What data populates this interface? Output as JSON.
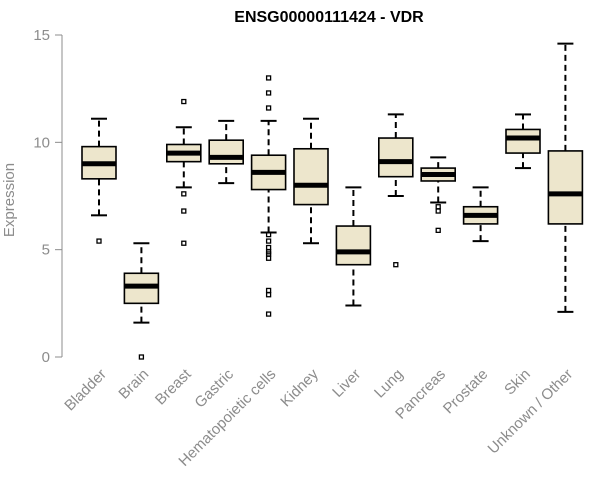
{
  "chart_data": {
    "type": "boxplot",
    "title": "ENSG00000111424 - VDR",
    "xlabel": "",
    "ylabel": "Expression",
    "ylim": [
      0,
      15
    ],
    "yticks": [
      0,
      5,
      10,
      15
    ],
    "categories": [
      "Bladder",
      "Brain",
      "Breast",
      "Gastric",
      "Hematopoietic cells",
      "Kidney",
      "Liver",
      "Lung",
      "Pancreas",
      "Prostate",
      "Skin",
      "Unknown / Other"
    ],
    "boxes": [
      {
        "name": "Bladder",
        "min": 6.6,
        "q1": 8.3,
        "median": 9.0,
        "q3": 9.8,
        "max": 11.1,
        "outliers": [
          5.4
        ]
      },
      {
        "name": "Brain",
        "min": 1.6,
        "q1": 2.5,
        "median": 3.3,
        "q3": 3.9,
        "max": 5.3,
        "outliers": [
          0.0
        ]
      },
      {
        "name": "Breast",
        "min": 7.9,
        "q1": 9.1,
        "median": 9.5,
        "q3": 9.9,
        "max": 10.7,
        "outliers": [
          11.9,
          7.6,
          6.8,
          5.3
        ]
      },
      {
        "name": "Gastric",
        "min": 8.1,
        "q1": 9.0,
        "median": 9.3,
        "q3": 10.1,
        "max": 11.0,
        "outliers": []
      },
      {
        "name": "Hematopoietic cells",
        "min": 5.8,
        "q1": 7.8,
        "median": 8.6,
        "q3": 9.4,
        "max": 11.0,
        "outliers": [
          13.0,
          12.3,
          11.6,
          5.7,
          5.4,
          5.1,
          4.9,
          4.8,
          4.6,
          3.1,
          2.9,
          2.0
        ]
      },
      {
        "name": "Kidney",
        "min": 5.3,
        "q1": 7.1,
        "median": 8.0,
        "q3": 9.7,
        "max": 11.1,
        "outliers": []
      },
      {
        "name": "Liver",
        "min": 2.4,
        "q1": 4.3,
        "median": 4.9,
        "q3": 6.1,
        "max": 7.9,
        "outliers": []
      },
      {
        "name": "Lung",
        "min": 7.5,
        "q1": 8.4,
        "median": 9.1,
        "q3": 10.2,
        "max": 11.3,
        "outliers": [
          4.3
        ]
      },
      {
        "name": "Pancreas",
        "min": 7.2,
        "q1": 8.2,
        "median": 8.5,
        "q3": 8.8,
        "max": 9.3,
        "outliers": [
          7.0,
          6.8,
          5.9
        ]
      },
      {
        "name": "Prostate",
        "min": 5.4,
        "q1": 6.2,
        "median": 6.6,
        "q3": 7.0,
        "max": 7.9,
        "outliers": []
      },
      {
        "name": "Skin",
        "min": 8.8,
        "q1": 9.5,
        "median": 10.2,
        "q3": 10.6,
        "max": 11.3,
        "outliers": []
      },
      {
        "name": "Unknown / Other",
        "min": 2.1,
        "q1": 6.2,
        "median": 7.6,
        "q3": 9.6,
        "max": 14.6,
        "outliers": []
      }
    ],
    "grid": false,
    "legend": "none",
    "colors": {
      "box_fill": "#ede6cc",
      "stroke": "#000000",
      "axis": "#8c8c8c"
    }
  }
}
